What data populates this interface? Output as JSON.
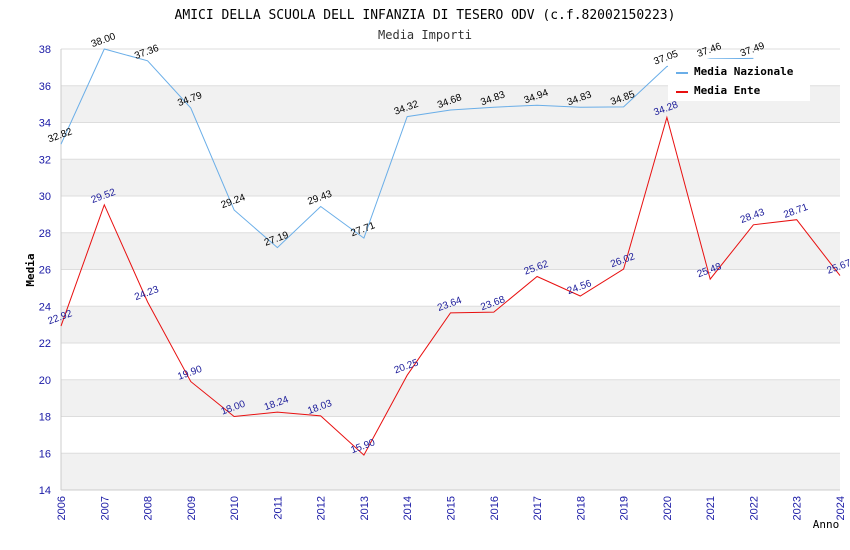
{
  "chart_data": {
    "type": "line",
    "title": "AMICI DELLA SCUOLA DELL INFANZIA DI TESERO ODV (c.f.82002150223)",
    "subtitle": "Media Importi",
    "xlabel": "Anno",
    "ylabel": "Media",
    "ylim": [
      14,
      38
    ],
    "yticks": [
      "14",
      "16",
      "18",
      "20",
      "22",
      "24",
      "26",
      "28",
      "30",
      "32",
      "34",
      "36",
      "38"
    ],
    "categories": [
      "2006",
      "2007",
      "2008",
      "2009",
      "2010",
      "2011",
      "2012",
      "2013",
      "2014",
      "2015",
      "2016",
      "2017",
      "2018",
      "2019",
      "2020",
      "2021",
      "2022",
      "2023",
      "2024"
    ],
    "series": [
      {
        "name": "Media Nazionale",
        "color": "#6aaee8",
        "values": [
          32.82,
          38.0,
          37.36,
          34.79,
          29.24,
          27.19,
          29.43,
          27.71,
          34.32,
          34.68,
          34.83,
          34.94,
          34.83,
          34.85,
          37.05,
          37.46,
          37.49,
          null,
          null
        ],
        "labels": [
          "32.82",
          "38.00",
          "37.36",
          "34.79",
          "29.24",
          "27.19",
          "29.43",
          "27.71",
          "34.32",
          "34.68",
          "34.83",
          "34.94",
          "34.83",
          "34.85",
          "37.05",
          "37.46",
          "37.49",
          "",
          ""
        ]
      },
      {
        "name": "Media Ente",
        "color": "#e81010",
        "values": [
          22.92,
          29.52,
          24.23,
          19.9,
          18.0,
          18.24,
          18.03,
          15.9,
          20.25,
          23.64,
          23.68,
          25.62,
          24.56,
          26.02,
          34.28,
          25.48,
          28.43,
          28.71,
          25.67
        ],
        "labels": [
          "22.92",
          "29.52",
          "24.23",
          "19.90",
          "18.00",
          "18.24",
          "18.03",
          "15.90",
          "20.25",
          "23.64",
          "23.68",
          "25.62",
          "24.56",
          "26.02",
          "34.28",
          "25.48",
          "28.43",
          "28.71",
          "25.67"
        ]
      }
    ],
    "grid": true,
    "legend_position": "top-right"
  }
}
